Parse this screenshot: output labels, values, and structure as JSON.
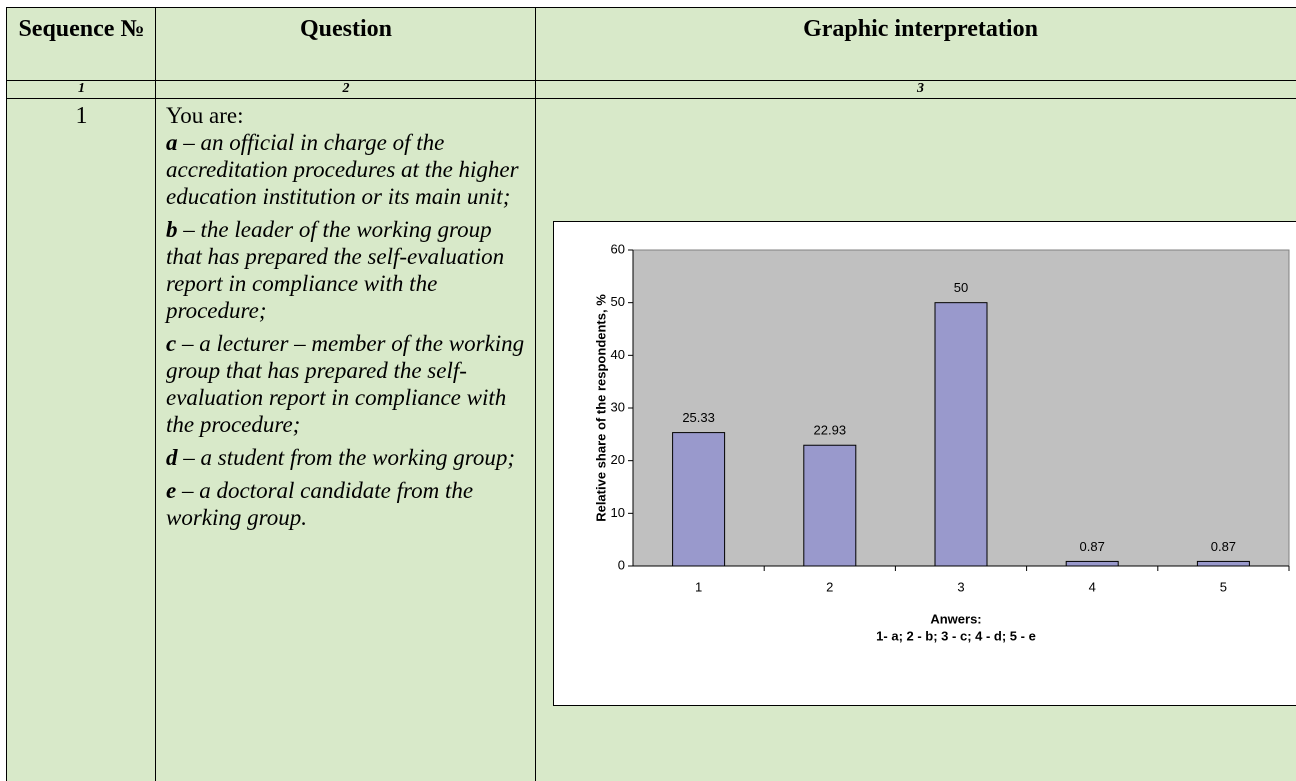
{
  "table": {
    "header": [
      "Sequence №",
      "Question",
      "Graphic interpretation"
    ],
    "numbers": [
      "1",
      "2",
      "3"
    ],
    "rows": [
      {
        "seq": "1",
        "intro": "You are:",
        "answers": [
          {
            "letter": "a",
            "text": " – an official in charge of the accreditation procedures at the higher education institution or its main unit;"
          },
          {
            "letter": "b",
            "text": " – the leader of the working group that has prepared the self-evaluation report in compliance with the procedure;"
          },
          {
            "letter": "c",
            "text": " – a lecturer – member of the working group that has prepared the self-evaluation report in compliance with the procedure;"
          },
          {
            "letter": "d",
            "text": " – a student from the working group;"
          },
          {
            "letter": "e",
            "text": " – a doctoral candidate from the working group."
          }
        ]
      }
    ]
  },
  "chart_data": {
    "type": "bar",
    "categories": [
      "1",
      "2",
      "3",
      "4",
      "5"
    ],
    "values": [
      25.33,
      22.93,
      50,
      0.87,
      0.87
    ],
    "color": "#9999cc",
    "ylim": [
      0,
      60
    ],
    "yticks": [
      0,
      10,
      20,
      30,
      40,
      50,
      60
    ],
    "y_label": "Relative share of the respondents, %",
    "x_label": [
      "Anwers:",
      "1- a; 2 - b; 3 - c; 4 - d; 5 - e"
    ]
  }
}
